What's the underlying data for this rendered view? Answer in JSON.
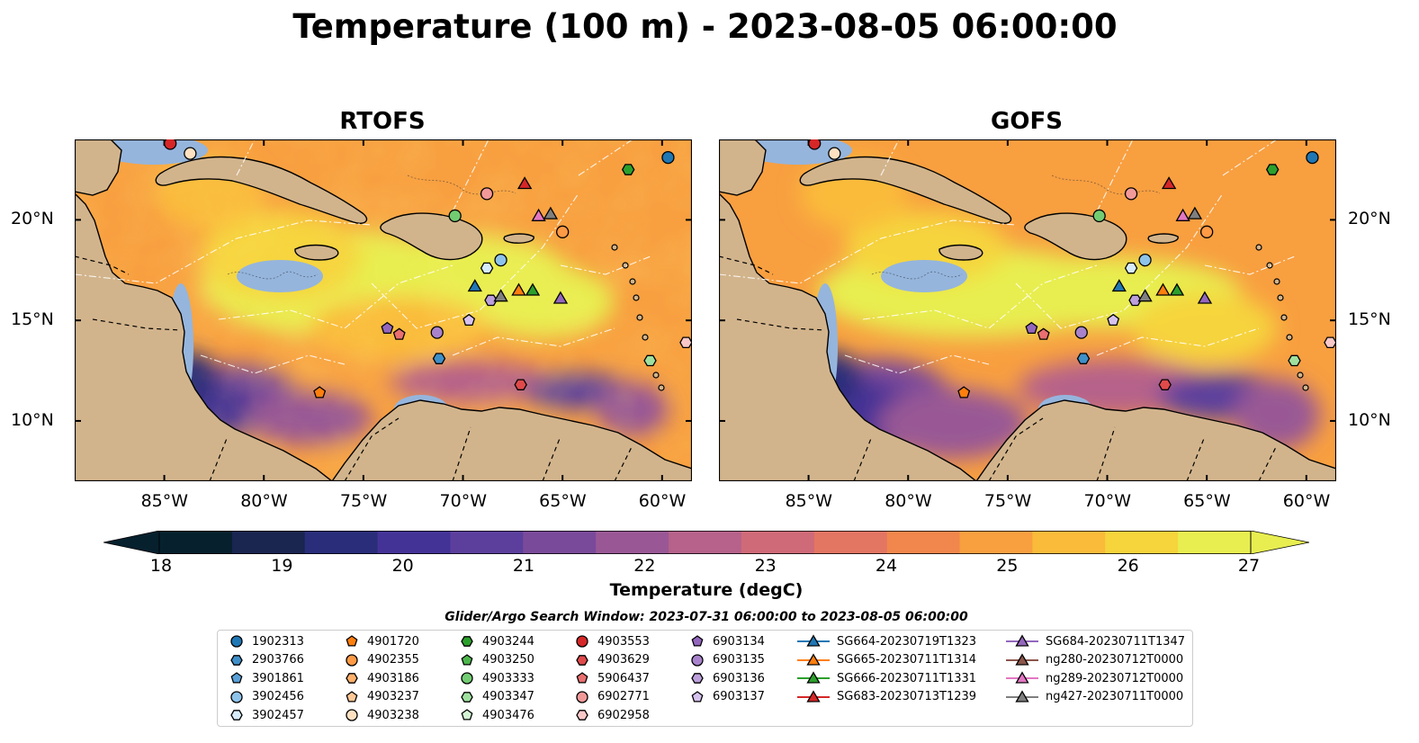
{
  "title": "Temperature (100 m) - 2023-08-05 06:00:00",
  "panels": [
    {
      "title": "RTOFS"
    },
    {
      "title": "GOFS"
    }
  ],
  "axes": {
    "x_ticks": [
      "85°W",
      "80°W",
      "75°W",
      "70°W",
      "65°W",
      "60°W"
    ],
    "y_ticks": [
      "20°N",
      "15°N",
      "10°N"
    ],
    "lon_range": [
      -89.5,
      -58.5
    ],
    "lat_range": [
      7,
      24
    ]
  },
  "colorbar": {
    "label": "Temperature (degC)",
    "ticks": [
      "18",
      "19",
      "20",
      "21",
      "22",
      "23",
      "24",
      "25",
      "26",
      "27"
    ],
    "range": [
      18,
      27
    ],
    "colors": [
      "#06202e",
      "#1a2550",
      "#2a2d7a",
      "#443396",
      "#5c3f9d",
      "#7a4a9a",
      "#995895",
      "#b6628a",
      "#cf6a78",
      "#e37563",
      "#f1874c",
      "#f89f40",
      "#fabb3a",
      "#f6d43c",
      "#e8ee50"
    ]
  },
  "legend": {
    "title": "Glider/Argo Search Window: 2023-07-31 06:00:00 to 2023-08-05 06:00:00",
    "columns": [
      [
        {
          "label": "1902313",
          "marker": "circle",
          "color": "#1f77b4"
        },
        {
          "label": "2903766",
          "marker": "hexagon",
          "color": "#3f8fc8"
        },
        {
          "label": "3901861",
          "marker": "pentagon",
          "color": "#5aa0d8"
        },
        {
          "label": "3902456",
          "marker": "circle",
          "color": "#8ec3ea"
        },
        {
          "label": "3902457",
          "marker": "hexagon",
          "color": "#d6ecfa"
        }
      ],
      [
        {
          "label": "4901720",
          "marker": "pentagon",
          "color": "#ff7f0e"
        },
        {
          "label": "4902355",
          "marker": "circle",
          "color": "#ff9a45"
        },
        {
          "label": "4903186",
          "marker": "hexagon",
          "color": "#ffb06b"
        },
        {
          "label": "4903237",
          "marker": "pentagon",
          "color": "#ffc897"
        },
        {
          "label": "4903238",
          "marker": "circle",
          "color": "#ffe1c2"
        }
      ],
      [
        {
          "label": "4903244",
          "marker": "hexagon",
          "color": "#2ca02c"
        },
        {
          "label": "4903250",
          "marker": "pentagon",
          "color": "#4cb64c"
        },
        {
          "label": "4903333",
          "marker": "circle",
          "color": "#72cc72"
        },
        {
          "label": "4903347",
          "marker": "hexagon",
          "color": "#9fe09f"
        },
        {
          "label": "4903476",
          "marker": "pentagon",
          "color": "#d4f5d4"
        }
      ],
      [
        {
          "label": "4903553",
          "marker": "circle",
          "color": "#d62728"
        },
        {
          "label": "4903629",
          "marker": "hexagon",
          "color": "#e04a4b"
        },
        {
          "label": "5906437",
          "marker": "pentagon",
          "color": "#e96f70"
        },
        {
          "label": "6902771",
          "marker": "circle",
          "color": "#f29999"
        },
        {
          "label": "6902958",
          "marker": "hexagon",
          "color": "#f9c9c9"
        }
      ],
      [
        {
          "label": "6903134",
          "marker": "pentagon",
          "color": "#9467bd"
        },
        {
          "label": "6903135",
          "marker": "circle",
          "color": "#a883cc"
        },
        {
          "label": "6903136",
          "marker": "hexagon",
          "color": "#bc9fdb"
        },
        {
          "label": "6903137",
          "marker": "pentagon",
          "color": "#d6c2ee"
        }
      ],
      [
        {
          "label": "SG664-20230719T1323",
          "marker": "triangle",
          "color": "#1f77b4"
        },
        {
          "label": "SG665-20230711T1314",
          "marker": "triangle",
          "color": "#ff7f0e"
        },
        {
          "label": "SG666-20230711T1331",
          "marker": "triangle",
          "color": "#2ca02c"
        },
        {
          "label": "SG683-20230713T1239",
          "marker": "triangle",
          "color": "#d62728"
        }
      ],
      [
        {
          "label": "SG684-20230711T1347",
          "marker": "triangle",
          "color": "#9467bd"
        },
        {
          "label": "ng280-20230712T0000",
          "marker": "triangle",
          "color": "#8c564b"
        },
        {
          "label": "ng289-20230712T0000",
          "marker": "triangle",
          "color": "#e377c2"
        },
        {
          "label": "ng427-20230711T0000",
          "marker": "triangle",
          "color": "#7f7f7f"
        }
      ]
    ]
  },
  "observations": [
    {
      "label": "1902313",
      "lon": -59.7,
      "lat": 23.1
    },
    {
      "label": "4901720",
      "lon": -77.2,
      "lat": 11.4
    },
    {
      "label": "4903238",
      "lon": -83.7,
      "lat": 23.3
    },
    {
      "label": "4903553",
      "lon": -84.7,
      "lat": 23.8
    },
    {
      "label": "4903244",
      "lon": -61.7,
      "lat": 22.5
    },
    {
      "label": "4903333",
      "lon": -70.4,
      "lat": 20.2
    },
    {
      "label": "6902771",
      "lon": -68.8,
      "lat": 21.3
    },
    {
      "label": "4902355",
      "lon": -65.0,
      "lat": 19.4
    },
    {
      "label": "3902456",
      "lon": -68.1,
      "lat": 18.0
    },
    {
      "label": "3902457",
      "lon": -68.8,
      "lat": 17.6
    },
    {
      "label": "6903136",
      "lon": -68.6,
      "lat": 16.0
    },
    {
      "label": "6903137",
      "lon": -69.7,
      "lat": 15.0
    },
    {
      "label": "6903134",
      "lon": -73.8,
      "lat": 14.6
    },
    {
      "label": "5906437",
      "lon": -73.2,
      "lat": 14.3
    },
    {
      "label": "6903135",
      "lon": -71.3,
      "lat": 14.4
    },
    {
      "label": "2903766",
      "lon": -71.2,
      "lat": 13.1
    },
    {
      "label": "4903629",
      "lon": -67.1,
      "lat": 11.8
    },
    {
      "label": "4903347",
      "lon": -60.6,
      "lat": 13.0
    },
    {
      "label": "6902958",
      "lon": -58.8,
      "lat": 13.9
    },
    {
      "label": "SG683-20230713T1239",
      "lon": -66.9,
      "lat": 21.8
    },
    {
      "label": "ng289-20230712T0000",
      "lon": -66.2,
      "lat": 20.2
    },
    {
      "label": "ng427-20230711T0000",
      "lon": -65.6,
      "lat": 20.3
    },
    {
      "label": "SG664-20230719T1323",
      "lon": -69.4,
      "lat": 16.7
    },
    {
      "label": "ng427-20230711T0000",
      "lon": -68.1,
      "lat": 16.2
    },
    {
      "label": "SG665-20230711T1314",
      "lon": -67.2,
      "lat": 16.5
    },
    {
      "label": "SG666-20230711T1331",
      "lon": -66.5,
      "lat": 16.5
    },
    {
      "label": "SG684-20230711T1347",
      "lon": -65.1,
      "lat": 16.1
    }
  ]
}
